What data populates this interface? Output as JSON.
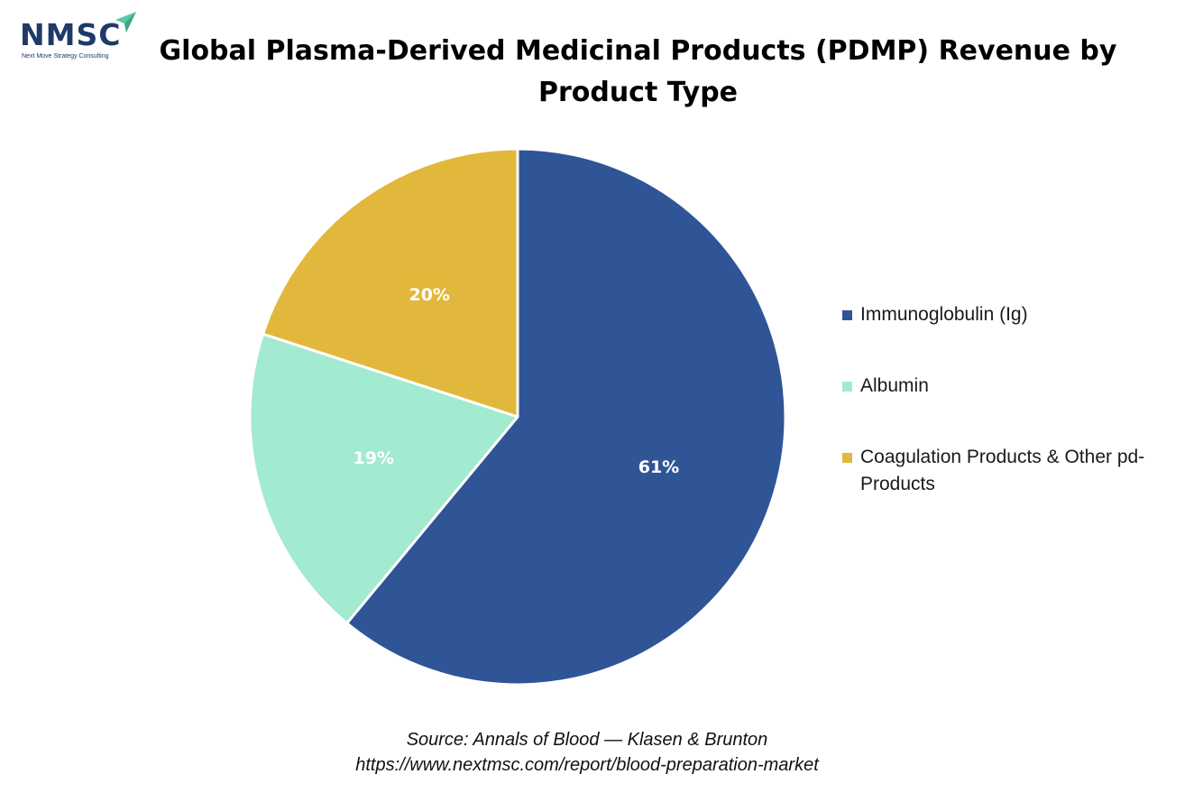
{
  "logo": {
    "text": "NMSC",
    "tagline": "Next Move Strategy Consulting"
  },
  "chart_data": {
    "type": "pie",
    "title": "Global Plasma-Derived Medicinal Products (PDMP) Revenue by Product Type",
    "slices": [
      {
        "label": "Immunoglobulin (Ig)",
        "value": 61,
        "display": "61%",
        "color": "#2f5597"
      },
      {
        "label": "Albumin",
        "value": 19,
        "display": "19%",
        "color": "#a2ead0"
      },
      {
        "label": "Coagulation Products & Other pd-Products",
        "value": 20,
        "display": "20%",
        "color": "#e1b83b"
      }
    ],
    "start": "12 o'clock",
    "direction": "clockwise",
    "legend_position": "right"
  },
  "source": {
    "line1": "Source: Annals of Blood — Klasen & Brunton",
    "line2": "https://www.nextmsc.com/report/blood-preparation-market"
  }
}
